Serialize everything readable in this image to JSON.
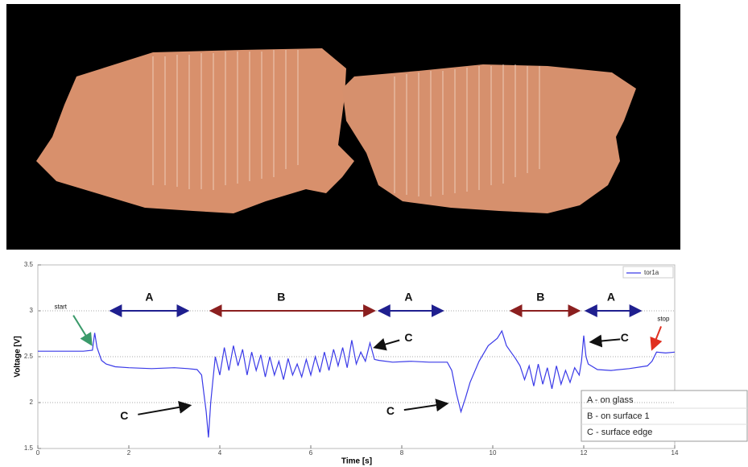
{
  "chart_data": {
    "type": "line",
    "xlabel": "Time [s]",
    "ylabel": "Voltage [V]",
    "x": [
      0,
      0.5,
      1.0,
      1.2,
      1.25,
      1.3,
      1.4,
      1.5,
      1.7,
      2.0,
      2.5,
      3.0,
      3.3,
      3.5,
      3.6,
      3.65,
      3.7,
      3.75,
      3.8,
      3.85,
      3.9,
      4.0,
      4.1,
      4.2,
      4.3,
      4.4,
      4.5,
      4.6,
      4.7,
      4.8,
      4.9,
      5.0,
      5.1,
      5.2,
      5.3,
      5.4,
      5.5,
      5.6,
      5.7,
      5.8,
      5.9,
      6.0,
      6.1,
      6.2,
      6.3,
      6.4,
      6.5,
      6.6,
      6.7,
      6.8,
      6.9,
      7.0,
      7.1,
      7.2,
      7.3,
      7.4,
      7.5,
      7.8,
      8.2,
      8.6,
      9.0,
      9.1,
      9.2,
      9.3,
      9.4,
      9.5,
      9.7,
      9.9,
      10.1,
      10.2,
      10.3,
      10.4,
      10.5,
      10.6,
      10.7,
      10.8,
      10.9,
      11.0,
      11.1,
      11.2,
      11.3,
      11.4,
      11.5,
      11.6,
      11.7,
      11.8,
      11.9,
      11.95,
      12.0,
      12.05,
      12.1,
      12.3,
      12.6,
      13.0,
      13.4,
      13.5,
      13.6,
      13.8,
      14.0
    ],
    "series": [
      {
        "name": "tor1a",
        "color": "#3a3ae8",
        "values": [
          2.56,
          2.56,
          2.56,
          2.57,
          2.76,
          2.6,
          2.46,
          2.42,
          2.39,
          2.38,
          2.37,
          2.38,
          2.37,
          2.36,
          2.3,
          2.1,
          1.9,
          1.62,
          2.0,
          2.25,
          2.5,
          2.3,
          2.6,
          2.35,
          2.62,
          2.4,
          2.58,
          2.3,
          2.55,
          2.35,
          2.52,
          2.28,
          2.5,
          2.3,
          2.45,
          2.25,
          2.48,
          2.3,
          2.42,
          2.28,
          2.47,
          2.3,
          2.5,
          2.33,
          2.55,
          2.35,
          2.58,
          2.4,
          2.6,
          2.38,
          2.68,
          2.42,
          2.55,
          2.45,
          2.65,
          2.47,
          2.46,
          2.44,
          2.45,
          2.44,
          2.44,
          2.35,
          2.1,
          1.9,
          2.05,
          2.22,
          2.45,
          2.62,
          2.7,
          2.78,
          2.62,
          2.55,
          2.48,
          2.4,
          2.25,
          2.4,
          2.18,
          2.42,
          2.2,
          2.38,
          2.15,
          2.4,
          2.2,
          2.35,
          2.22,
          2.38,
          2.3,
          2.45,
          2.73,
          2.5,
          2.42,
          2.36,
          2.35,
          2.37,
          2.4,
          2.45,
          2.55,
          2.54,
          2.55
        ]
      }
    ],
    "xlim": [
      0,
      14
    ],
    "ylim": [
      1.5,
      3.5
    ],
    "xticks": [
      0,
      2,
      4,
      6,
      8,
      10,
      12,
      14
    ],
    "yticks": [
      1.5,
      2,
      2.5,
      3,
      3.5
    ],
    "grid": true,
    "legend": "upper right",
    "annotations": [
      "A",
      "B",
      "A",
      "B",
      "A",
      "C",
      "C",
      "C",
      "C",
      "start",
      "stop"
    ],
    "key": [
      "A - on glass",
      "B - on surface 1",
      "C - surface edge"
    ]
  }
}
